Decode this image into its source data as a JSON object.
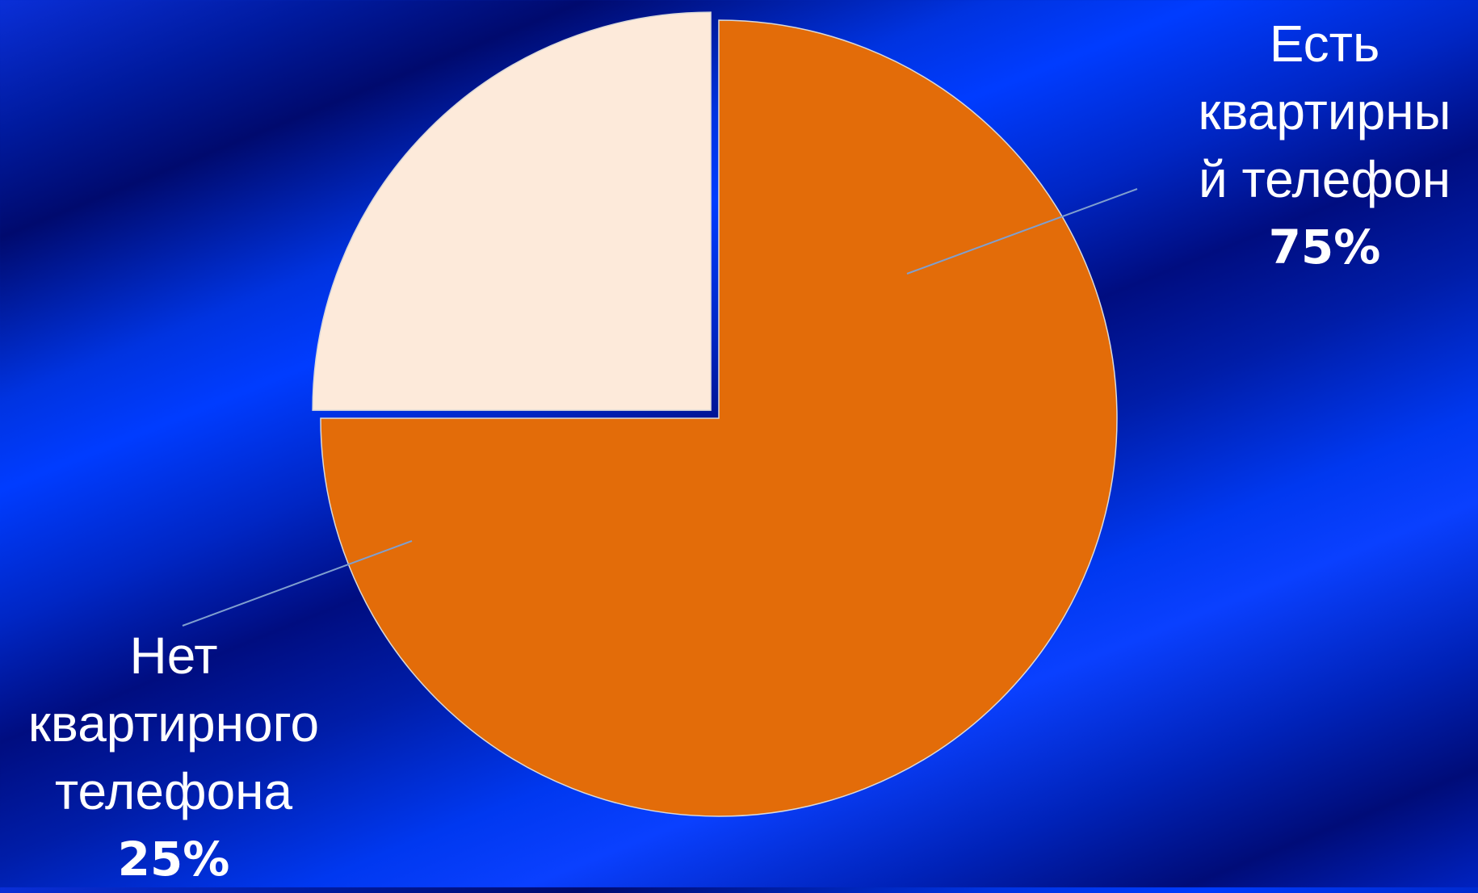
{
  "chart_data": {
    "type": "pie",
    "slices": [
      {
        "label_lines": [
          "Есть",
          "квартирны",
          "й телефон"
        ],
        "value_label": "75%",
        "value": 75,
        "color": "#E36C09",
        "exploded": false
      },
      {
        "label_lines": [
          "Нет",
          "квартирного",
          "телефона"
        ],
        "value_label": "25%",
        "value": 25,
        "color": "#FDEADA",
        "exploded": true
      }
    ],
    "start_angle_deg": 0,
    "direction": "counterclockwise-for-second-slice",
    "legend": "none",
    "leader_line_color": "#7F9FCF"
  }
}
